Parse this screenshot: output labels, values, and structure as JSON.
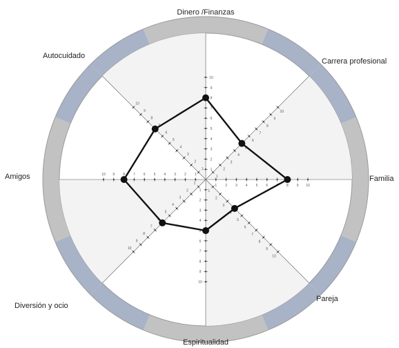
{
  "chart_data": {
    "type": "radar",
    "axes": [
      "Dinero /Finanzas",
      "Carrera profesional",
      "Familia",
      "Pareja",
      "Espiritualidad",
      "Diversión y ocio",
      "Amigos",
      "Autocuidado"
    ],
    "values": [
      8,
      5,
      8,
      4,
      5,
      6,
      8,
      7
    ],
    "range": [
      0,
      10
    ],
    "ticks": [
      "1",
      "2",
      "3",
      "4",
      "5",
      "6",
      "7",
      "8",
      "9",
      "10"
    ],
    "grid": false,
    "colors": {
      "ring_blue": "#a8b3c8",
      "ring_gray": "#c2c2c2",
      "sector_shade": "#f3f3f3",
      "line": "#111111",
      "axis": "#555555"
    }
  }
}
